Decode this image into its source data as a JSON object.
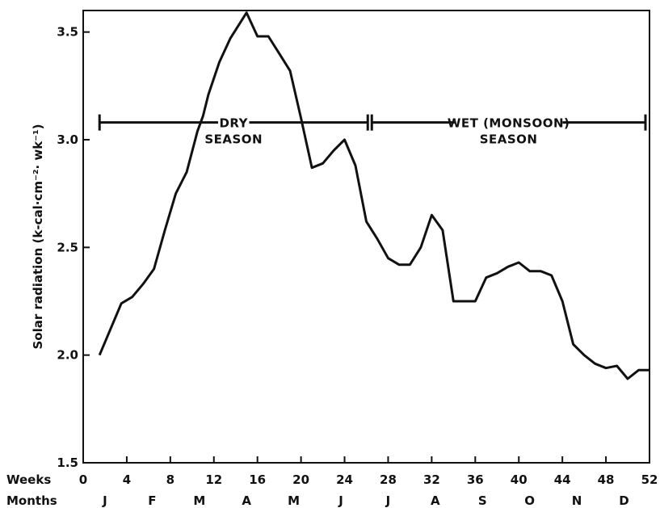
{
  "chart_data": {
    "type": "line",
    "title": "",
    "ylabel": "Solar radiation (k-cal·cm⁻²· wk⁻¹)",
    "xlabel_weeks": "Weeks",
    "xlabel_months": "Months",
    "xlim": [
      0,
      52
    ],
    "ylim": [
      1.5,
      3.6
    ],
    "grid": false,
    "x_ticks": [
      0,
      4,
      8,
      12,
      16,
      20,
      24,
      28,
      32,
      36,
      40,
      44,
      48,
      52
    ],
    "y_ticks": [
      "1.5",
      "2.0",
      "2.5",
      "3.0",
      "3.5"
    ],
    "months": [
      "J",
      "F",
      "M",
      "A",
      "M",
      "J",
      "J",
      "A",
      "S",
      "O",
      "N",
      "D"
    ],
    "seasons": [
      {
        "line1": "DRY",
        "line2": "SEASON",
        "start_week": 1.5,
        "end_week": 26.5
      },
      {
        "line1": "WET (MONSOON)",
        "line2": "SEASON",
        "start_week": 26.5,
        "end_week": 52
      }
    ],
    "series": [
      {
        "x": [
          1.5,
          2.5,
          3.5,
          4.5,
          5.5,
          6.5,
          7.5,
          8.5,
          9.5,
          10.5,
          11,
          11.5,
          12.5,
          13.5,
          14.5,
          15,
          16,
          17,
          18,
          19,
          20,
          21,
          22,
          23,
          24,
          25,
          26,
          27,
          28,
          29,
          30,
          31,
          32,
          33,
          34,
          35,
          36,
          37,
          38,
          39,
          40,
          41,
          42,
          43,
          44,
          45,
          46,
          47,
          48,
          49,
          50,
          51,
          52
        ],
        "y": [
          2.0,
          2.12,
          2.24,
          2.27,
          2.33,
          2.4,
          2.58,
          2.75,
          2.85,
          3.04,
          3.11,
          3.21,
          3.36,
          3.47,
          3.55,
          3.59,
          3.48,
          3.48,
          3.4,
          3.32,
          3.1,
          2.87,
          2.89,
          2.95,
          3.0,
          2.88,
          2.62,
          2.54,
          2.45,
          2.42,
          2.42,
          2.5,
          2.65,
          2.58,
          2.25,
          2.25,
          2.25,
          2.36,
          2.38,
          2.41,
          2.43,
          2.39,
          2.39,
          2.37,
          2.25,
          2.05,
          2.0,
          1.96,
          1.94,
          1.95,
          1.89,
          1.93,
          1.93
        ]
      }
    ]
  }
}
